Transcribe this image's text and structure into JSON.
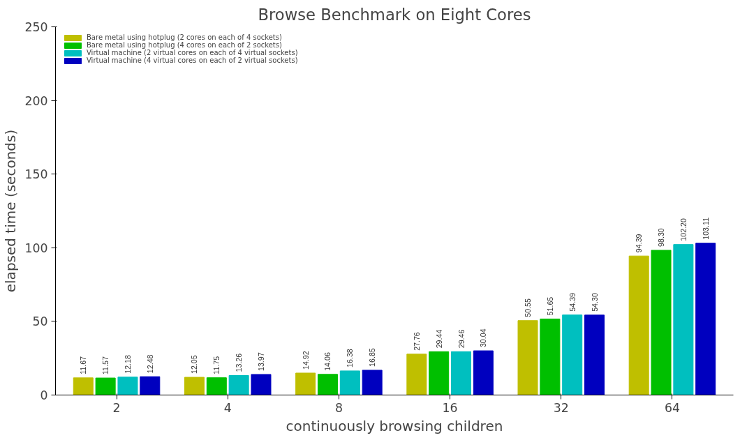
{
  "chart_data": {
    "type": "bar",
    "title": "Browse Benchmark on Eight Cores",
    "xlabel": "continuously browsing children",
    "ylabel": "elapsed time (seconds)",
    "categories": [
      "2",
      "4",
      "8",
      "16",
      "32",
      "64"
    ],
    "series": [
      {
        "name": "Bare metal using hotplug (2 cores on each of 4 sockets)",
        "color": "#bfbf00",
        "values": [
          11.67,
          12.05,
          14.92,
          27.76,
          50.55,
          94.39
        ],
        "value_labels": [
          "11.67",
          "12.05",
          "14.92",
          "27.76",
          "50.55",
          "94.39"
        ]
      },
      {
        "name": "Bare metal using hotplug (4 cores on each of 2 sockets)",
        "color": "#00bf00",
        "values": [
          11.57,
          11.75,
          14.06,
          29.44,
          51.65,
          98.3
        ],
        "value_labels": [
          "11.57",
          "11.75",
          "14.06",
          "29.44",
          "51.65",
          "98.30"
        ]
      },
      {
        "name": "Virtual machine (2 virtual cores on each of 4 virtual sockets)",
        "color": "#00bfbf",
        "values": [
          12.18,
          13.26,
          16.38,
          29.46,
          54.39,
          102.2
        ],
        "value_labels": [
          "12.18",
          "13.26",
          "16.38",
          "29.46",
          "54.39",
          "102.20"
        ]
      },
      {
        "name": "Virtual machine (4 virtual cores on each of 2 virtual sockets)",
        "color": "#0000bf",
        "values": [
          12.48,
          13.97,
          16.85,
          30.04,
          54.3,
          103.11
        ],
        "value_labels": [
          "12.48",
          "13.97",
          "16.85",
          "30.04",
          "54.30",
          "103.11"
        ]
      }
    ],
    "ylim": [
      0,
      250
    ],
    "yticks": [
      0,
      50,
      100,
      150,
      200,
      250
    ],
    "grid": false,
    "legend": "top left"
  }
}
